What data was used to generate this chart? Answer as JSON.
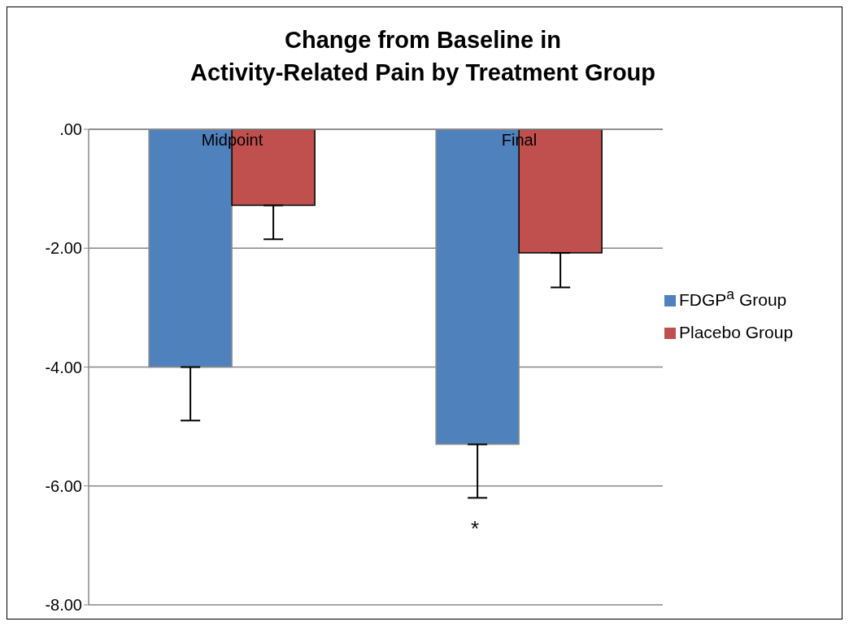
{
  "chart_data": {
    "type": "bar",
    "title": "Change from Baseline in\nActivity-Related Pain by Treatment Group",
    "categories": [
      "Midpoint",
      "Final"
    ],
    "series": [
      {
        "name": "FDGP$^{a}$ Group",
        "color": "#4f81bd",
        "values": [
          -4.0,
          -5.3
        ],
        "errors": [
          [
            -4.9,
            -4.0
          ],
          [
            -6.2,
            -5.3
          ]
        ]
      },
      {
        "name": "Placebo Group",
        "color": "#c0504d",
        "values": [
          -1.28,
          -2.08
        ],
        "errors": [
          [
            -1.85,
            -1.28
          ],
          [
            -2.66,
            -2.08
          ]
        ]
      }
    ],
    "ylim": [
      -8,
      0
    ],
    "yticks": [
      {
        "value": 0,
        "label": ".00"
      },
      {
        "value": -2,
        "label": "-2.00"
      },
      {
        "value": -4,
        "label": "-4.00"
      },
      {
        "value": -6,
        "label": "-6.00"
      },
      {
        "value": -8,
        "label": "-8.00"
      }
    ],
    "annotations": [
      "*"
    ],
    "grid": "y",
    "legend": "right"
  }
}
